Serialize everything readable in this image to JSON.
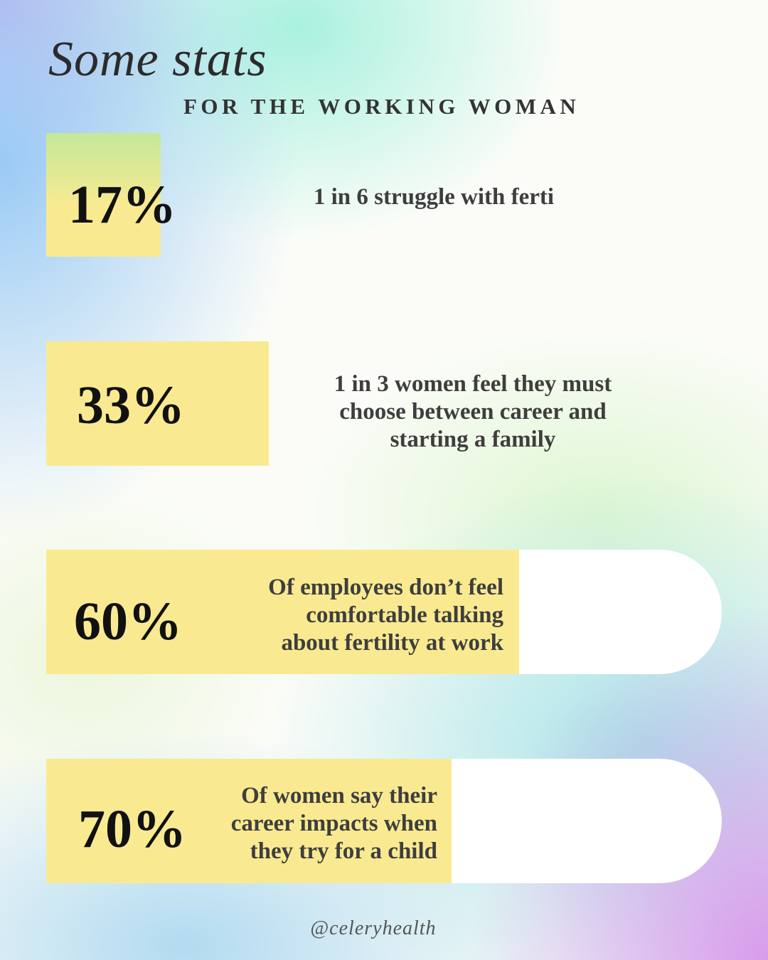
{
  "header": {
    "title": "Some stats",
    "subtitle": "FOR THE WORKING WOMAN"
  },
  "stats": [
    {
      "percent": "17%",
      "text": [
        "1 in 6 struggle with ferti"
      ]
    },
    {
      "percent": "33%",
      "text": [
        "1 in 3 women feel they must",
        "choose between career and",
        "starting a family"
      ]
    },
    {
      "percent": "60%",
      "text": [
        "Of employees don’t feel",
        "comfortable talking",
        "about fertility at work"
      ]
    },
    {
      "percent": "70%",
      "text": [
        "Of women say their",
        "career impacts when",
        "they try for a child"
      ]
    }
  ],
  "footer": {
    "handle": "@celeryhealth"
  }
}
